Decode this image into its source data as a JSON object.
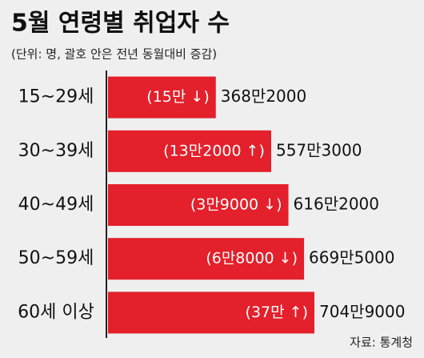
{
  "chart_data": {
    "type": "bar",
    "orientation": "horizontal",
    "title": "5월 연령별 취업자 수",
    "subtitle": "(단위: 명, 괄호 안은 전년 동월대비 증감)",
    "categories": [
      "15~29세",
      "30~39세",
      "40~49세",
      "50~59세",
      "60세 이상"
    ],
    "values": [
      3682000,
      5573000,
      6162000,
      6695000,
      7049000
    ],
    "value_labels": [
      "368만2000",
      "557만3000",
      "616만2000",
      "669만5000",
      "704만9000"
    ],
    "annotations": [
      "(15만 ↓)",
      "(13만2000 ↑)",
      "(3만9000 ↓)",
      "(6만8000 ↓)",
      "(37만 ↑)"
    ],
    "color": "#e3202b",
    "source": "자료: 통계청"
  }
}
